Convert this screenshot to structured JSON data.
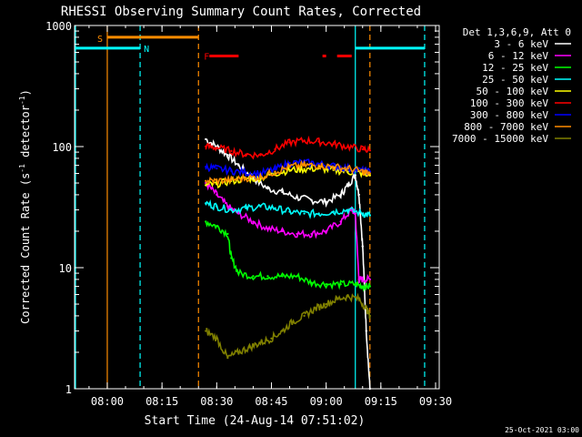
{
  "chart_data": {
    "type": "line",
    "title": "RHESSI Observing Summary Count Rates, Corrected",
    "xlabel": "Start Time (24-Aug-14 07:51:02)",
    "ylabel": "Corrected Count Rate (s⁻¹ detector⁻¹)",
    "ylabel_main": "Corrected Count Rate (s",
    "ylabel_sup1": "-1",
    "ylabel_mid": " detector",
    "ylabel_sup2": "-1",
    "ylabel_end": ")",
    "yscale": "log",
    "ylim": [
      1,
      1000
    ],
    "xlim": [
      "07:51:02",
      "09:31:00"
    ],
    "x_ticks": [
      "08:00",
      "08:15",
      "08:30",
      "08:45",
      "09:00",
      "09:15",
      "09:30"
    ],
    "y_ticks": [
      "1",
      "10",
      "100",
      "1000"
    ],
    "footer": "25-Oct-2021 03:00",
    "legend_title": "Det 1,3,6,9, Att 0",
    "legend_position": "right",
    "series": [
      {
        "name": "3 - 6 keV",
        "color": "#ffffff",
        "x": [
          "08:27",
          "08:30",
          "08:33",
          "08:36",
          "08:40",
          "08:44",
          "08:48",
          "08:52",
          "08:56",
          "09:00",
          "09:04",
          "09:06",
          "09:08",
          "09:09",
          "09:10",
          "09:11",
          "09:12"
        ],
        "values": [
          115,
          100,
          85,
          70,
          55,
          45,
          42,
          38,
          36,
          35,
          40,
          48,
          58,
          40,
          15,
          3,
          1
        ]
      },
      {
        "name": "6 - 12 keV",
        "color": "#ff00ff",
        "x": [
          "08:27",
          "08:30",
          "08:33",
          "08:36",
          "08:40",
          "08:44",
          "08:48",
          "08:52",
          "08:56",
          "09:00",
          "09:04",
          "09:07",
          "09:08",
          "09:09",
          "09:10",
          "09:12"
        ],
        "values": [
          50,
          40,
          32,
          28,
          24,
          21,
          20,
          19,
          19,
          20,
          24,
          30,
          28,
          8,
          8,
          8
        ]
      },
      {
        "name": "12 - 25 keV",
        "color": "#00ff00",
        "x": [
          "08:27",
          "08:30",
          "08:33",
          "08:34",
          "08:36",
          "08:40",
          "08:44",
          "08:48",
          "08:52",
          "08:56",
          "09:00",
          "09:04",
          "09:08",
          "09:10",
          "09:12"
        ],
        "values": [
          24,
          22,
          19,
          12,
          9.0,
          8.5,
          8.5,
          8.5,
          8.5,
          7.5,
          7.3,
          7.3,
          7.3,
          7.0,
          7.0
        ]
      },
      {
        "name": "25 - 50 keV",
        "color": "#00ffff",
        "x": [
          "08:27",
          "08:30",
          "08:34",
          "08:38",
          "08:42",
          "08:46",
          "08:50",
          "08:54",
          "08:58",
          "09:02",
          "09:06",
          "09:10",
          "09:12"
        ],
        "values": [
          34,
          32,
          30,
          31,
          32,
          31,
          29,
          28,
          28,
          29,
          30,
          28,
          27
        ]
      },
      {
        "name": "50 - 100 keV",
        "color": "#ffff00",
        "x": [
          "08:27",
          "08:30",
          "08:34",
          "08:38",
          "08:42",
          "08:46",
          "08:50",
          "08:54",
          "08:58",
          "09:02",
          "09:06",
          "09:10",
          "09:12"
        ],
        "values": [
          48,
          49,
          52,
          54,
          55,
          60,
          64,
          65,
          66,
          64,
          62,
          60,
          58
        ]
      },
      {
        "name": "100 - 300 keV",
        "color": "#ff0000",
        "x": [
          "08:27",
          "08:30",
          "08:34",
          "08:38",
          "08:42",
          "08:46",
          "08:50",
          "08:54",
          "08:58",
          "09:02",
          "09:06",
          "09:10",
          "09:12"
        ],
        "values": [
          100,
          98,
          92,
          86,
          85,
          95,
          108,
          112,
          110,
          105,
          100,
          95,
          93
        ]
      },
      {
        "name": "300 - 800 keV",
        "color": "#0000ff",
        "x": [
          "08:27",
          "08:30",
          "08:34",
          "08:38",
          "08:42",
          "08:46",
          "08:50",
          "08:54",
          "08:58",
          "09:02",
          "09:06",
          "09:10",
          "09:12"
        ],
        "values": [
          68,
          66,
          63,
          61,
          60,
          65,
          73,
          74,
          72,
          69,
          66,
          63,
          62
        ]
      },
      {
        "name": "800 - 7000 keV",
        "color": "#ff8c00",
        "x": [
          "08:27",
          "08:30",
          "08:34",
          "08:38",
          "08:42",
          "08:46",
          "08:50",
          "08:54",
          "08:58",
          "09:02",
          "09:06",
          "09:10",
          "09:12"
        ],
        "values": [
          52,
          52,
          53,
          55,
          56,
          62,
          68,
          70,
          70,
          68,
          66,
          62,
          60
        ]
      },
      {
        "name": "7000 - 15000 keV",
        "color": "#808000",
        "x": [
          "08:27",
          "08:30",
          "08:33",
          "08:36",
          "08:39",
          "08:42",
          "08:45",
          "08:48",
          "08:51",
          "08:54",
          "08:57",
          "09:00",
          "09:03",
          "09:06",
          "09:09",
          "09:11",
          "09:12"
        ],
        "values": [
          3.0,
          2.6,
          1.8,
          2.0,
          2.2,
          2.4,
          2.6,
          3.0,
          3.6,
          4.0,
          4.6,
          5.0,
          5.5,
          5.8,
          5.5,
          4.6,
          4.0
        ]
      }
    ],
    "markers": [
      {
        "label": "S",
        "color": "#ff8c00",
        "x": "08:00",
        "line": "solid"
      },
      {
        "label": "N",
        "color": "#00ffff",
        "x": "08:09",
        "line": "dashed"
      },
      {
        "label": "F",
        "color": "#ff0000",
        "x": "08:27",
        "line": "none"
      }
    ],
    "bars": [
      {
        "name": "S",
        "color": "#ff8c00",
        "x_start": "08:00",
        "x_end": "08:25",
        "level": 800
      },
      {
        "name": "N-left",
        "color": "#00ffff",
        "x_start": "07:51",
        "x_end": "08:09",
        "level": 650
      },
      {
        "name": "N-right",
        "color": "#00ffff",
        "x_start": "09:08",
        "x_end": "09:27",
        "level": 650
      },
      {
        "name": "F1",
        "color": "#ff0000",
        "x_start": "08:28",
        "x_end": "08:36",
        "level": 560
      },
      {
        "name": "F2",
        "color": "#ff0000",
        "x_start": "08:59",
        "x_end": "09:00",
        "level": 560
      },
      {
        "name": "F3",
        "color": "#ff0000",
        "x_start": "09:03",
        "x_end": "09:07",
        "level": 560
      }
    ],
    "vlines": [
      {
        "color": "#00ffff",
        "x": "07:51",
        "style": "solid"
      },
      {
        "color": "#ff8c00",
        "x": "08:00",
        "style": "solid"
      },
      {
        "color": "#00ffff",
        "x": "08:09",
        "style": "dashed"
      },
      {
        "color": "#ff8c00",
        "x": "08:25",
        "style": "dashed"
      },
      {
        "color": "#00ffff",
        "x": "09:08",
        "style": "solid"
      },
      {
        "color": "#ff8c00",
        "x": "09:12",
        "style": "dashed"
      },
      {
        "color": "#00ffff",
        "x": "09:27",
        "style": "dashed"
      }
    ]
  }
}
